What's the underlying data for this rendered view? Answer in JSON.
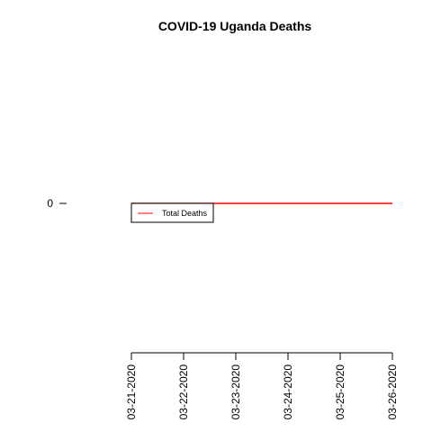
{
  "chart_data": {
    "type": "line",
    "title": "COVID-19 Uganda Deaths",
    "xlabel": "",
    "ylabel": "",
    "x": [
      "03-21-2020",
      "03-22-2020",
      "03-23-2020",
      "03-24-2020",
      "03-25-2020",
      "03-26-2020"
    ],
    "series": [
      {
        "name": "Total Deaths",
        "color": "#ff0000",
        "values": [
          0,
          0,
          0,
          0,
          0,
          0
        ]
      }
    ],
    "y_ticks": [
      0
    ],
    "y_tick_labels": [
      "0"
    ],
    "legend_placement": "top-left",
    "grid": false
  }
}
